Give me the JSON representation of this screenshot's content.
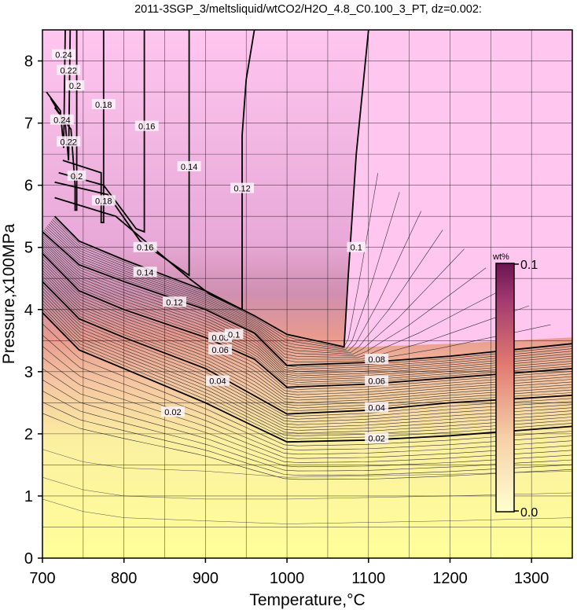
{
  "chart_data": {
    "type": "heatmap",
    "title": "2011-3SGP_3/meltsliquid/wtCO2/H2O_4.8_C0.100_3_PT, dz=0.002:",
    "xlabel": "Temperature,°C",
    "ylabel": "Pressure,x100MPa",
    "xlim": [
      700,
      1350
    ],
    "ylim": [
      0,
      8.5
    ],
    "x_ticks": [
      "700",
      "800",
      "900",
      "1000",
      "1100",
      "1200",
      "1300"
    ],
    "y_ticks": [
      "0",
      "1",
      "2",
      "3",
      "4",
      "5",
      "6",
      "7",
      "8"
    ],
    "grid": true,
    "contour_interval": 0.002,
    "colorbar": {
      "unit": "wt%",
      "min_label": "0.0",
      "max_label": "0.1",
      "range": [
        0.0,
        0.1
      ],
      "placement": "right-inside",
      "colors": [
        "#ffff99",
        "#f6c7a2",
        "#e07870",
        "#7a1b5a"
      ]
    },
    "plateau_color": "#ffc6f0",
    "major_contours": [
      {
        "level": "0.02",
        "label": "0.02",
        "points": [
          [
            700,
            3.95
          ],
          [
            745,
            3.35
          ],
          [
            800,
            3.05
          ],
          [
            900,
            2.5
          ],
          [
            955,
            2.15
          ],
          [
            1000,
            1.87
          ],
          [
            1100,
            1.9
          ],
          [
            1200,
            1.97
          ],
          [
            1350,
            2.12
          ]
        ],
        "label_at": [
          860,
          2.35
        ],
        "label2": "0.02",
        "label2_at": [
          1110,
          1.93
        ]
      },
      {
        "level": "0.04",
        "label": "0.04",
        "points": [
          [
            700,
            4.45
          ],
          [
            745,
            3.85
          ],
          [
            800,
            3.55
          ],
          [
            900,
            3.05
          ],
          [
            955,
            2.65
          ],
          [
            1000,
            2.32
          ],
          [
            1100,
            2.38
          ],
          [
            1200,
            2.5
          ],
          [
            1350,
            2.62
          ]
        ],
        "label_at": [
          915,
          2.85
        ],
        "label2": "0.04",
        "label2_at": [
          1110,
          2.42
        ]
      },
      {
        "level": "0.06",
        "label": "0.06",
        "points": [
          [
            700,
            4.9
          ],
          [
            745,
            4.3
          ],
          [
            800,
            4.0
          ],
          [
            900,
            3.55
          ],
          [
            960,
            3.2
          ],
          [
            1000,
            2.75
          ],
          [
            1100,
            2.8
          ],
          [
            1200,
            2.9
          ],
          [
            1350,
            3.05
          ]
        ],
        "label_at": [
          918,
          3.35
        ],
        "label2": "0.06",
        "label2_at": [
          1110,
          2.85
        ]
      },
      {
        "level": "0.08",
        "label": "0.08",
        "points": [
          [
            700,
            5.25
          ],
          [
            745,
            4.72
          ],
          [
            800,
            4.45
          ],
          [
            900,
            4.0
          ],
          [
            960,
            3.62
          ],
          [
            1000,
            3.1
          ],
          [
            1100,
            3.15
          ],
          [
            1200,
            3.25
          ],
          [
            1350,
            3.45
          ]
        ],
        "label_at": [
          918,
          3.55
        ],
        "label2": "0.08",
        "label2_at": [
          1110,
          3.2
        ]
      },
      {
        "level": "0.1",
        "label": "0.1",
        "points": [
          [
            715,
            5.5
          ],
          [
            745,
            5.1
          ],
          [
            800,
            4.8
          ],
          [
            900,
            4.3
          ],
          [
            960,
            3.9
          ],
          [
            1000,
            3.6
          ],
          [
            1070,
            3.4
          ],
          [
            1075,
            4.5
          ],
          [
            1085,
            6.5
          ],
          [
            1100,
            8.5
          ]
        ],
        "label_at": [
          935,
          3.6
        ],
        "label2": "0.1",
        "label2_at": [
          1085,
          5.0
        ]
      },
      {
        "level": "0.12",
        "label": "0.12",
        "points": [
          [
            715,
            5.8
          ],
          [
            790,
            5.5
          ],
          [
            880,
            4.5
          ],
          [
            905,
            4.25
          ],
          [
            945,
            4.0
          ],
          [
            945,
            6.8
          ],
          [
            950,
            7.7
          ],
          [
            960,
            8.5
          ]
        ],
        "label_at": [
          862,
          4.12
        ],
        "label2": "0.12",
        "label2_at": [
          945,
          5.95
        ]
      },
      {
        "level": "0.14",
        "label": "0.14",
        "points": [
          [
            715,
            6.05
          ],
          [
            780,
            5.85
          ],
          [
            820,
            5.1
          ],
          [
            880,
            4.55
          ],
          [
            880,
            5.5
          ],
          [
            880,
            8.5
          ]
        ],
        "label_at": [
          826,
          4.6
        ],
        "label2": "0.14",
        "label2_at": [
          880,
          6.3
        ]
      },
      {
        "level": "0.16",
        "label": "0.16",
        "points": [
          [
            720,
            6.2
          ],
          [
            775,
            6.0
          ],
          [
            815,
            5.3
          ],
          [
            825,
            5.25
          ],
          [
            825,
            6.0
          ],
          [
            825,
            8.5
          ]
        ],
        "label_at": [
          826,
          5.0
        ],
        "label2": "0.16",
        "label2_at": [
          828,
          6.95
        ]
      },
      {
        "level": "0.18",
        "label": "0.18",
        "points": [
          [
            725,
            6.4
          ],
          [
            772,
            6.2
          ],
          [
            772,
            5.4
          ],
          [
            775,
            5.4
          ],
          [
            775,
            8.5
          ]
        ],
        "label_at": [
          775,
          5.75
        ],
        "label2": "0.18",
        "label2_at": [
          775,
          7.3
        ]
      },
      {
        "level": "0.2",
        "label": "0.2",
        "points": [
          [
            715,
            7.25
          ],
          [
            735,
            6.9
          ],
          [
            740,
            6.0
          ],
          [
            740,
            5.6
          ],
          [
            742,
            5.6
          ],
          [
            742,
            8.5
          ]
        ],
        "label_at": [
          742,
          6.15
        ],
        "label2": "0.2",
        "label2_at": [
          740,
          7.6
        ]
      },
      {
        "level": "0.22",
        "label": "0.22",
        "points": [
          [
            710,
            7.4
          ],
          [
            728,
            7.0
          ],
          [
            732,
            6.4
          ],
          [
            734,
            8.5
          ]
        ],
        "label_at": [
          732,
          6.7
        ],
        "label2": "0.22",
        "label2_at": [
          732,
          7.85
        ]
      },
      {
        "level": "0.24",
        "label": "0.24",
        "points": [
          [
            705,
            7.5
          ],
          [
            722,
            7.2
          ],
          [
            726,
            6.6
          ],
          [
            728,
            8.5
          ]
        ],
        "label_at": [
          724,
          7.05
        ],
        "label2": "0.24",
        "label2_at": [
          726,
          8.1
        ]
      }
    ]
  }
}
